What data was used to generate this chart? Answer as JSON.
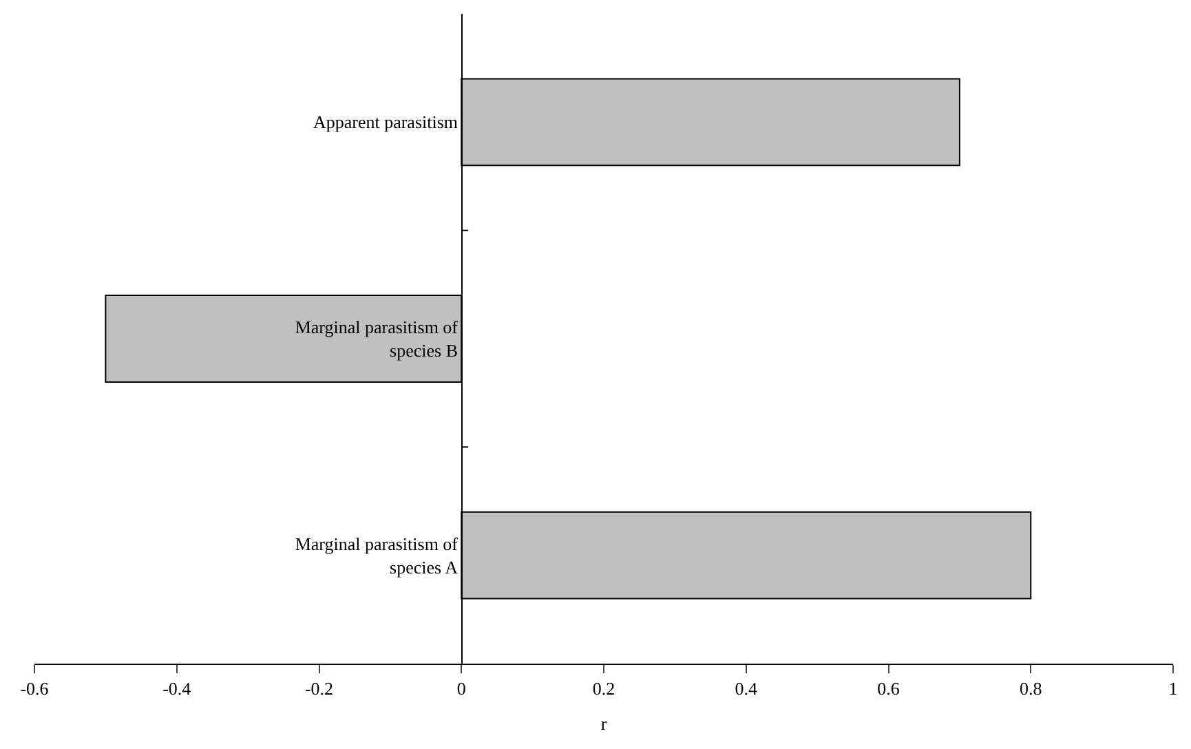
{
  "chart_data": {
    "type": "bar",
    "orientation": "horizontal",
    "xlabel": "r",
    "categories": [
      "Apparent parasitism",
      "Marginal parasitism of species B",
      "Marginal parasitism of species A"
    ],
    "values": [
      0.7,
      -0.5,
      0.8
    ],
    "color": "#c0c0c0",
    "xlim": [
      -0.6,
      1
    ],
    "xticks": [
      -0.6,
      -0.4,
      -0.2,
      0,
      0.2,
      0.4,
      0.6,
      0.8,
      1
    ],
    "legend": false
  }
}
